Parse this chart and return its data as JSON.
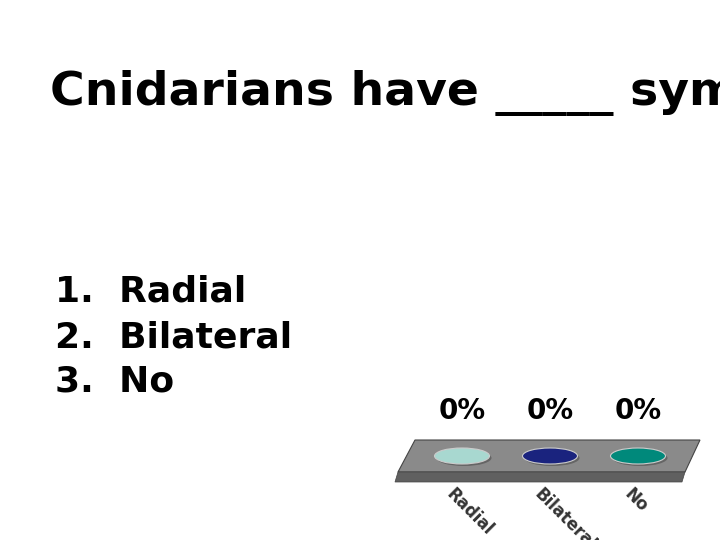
{
  "title": "Cnidarians have _____ symmetry",
  "items": [
    "1.  Radial",
    "2.  Bilateral",
    "3.  No"
  ],
  "bar_labels": [
    "Radial",
    "Bilateral",
    "No"
  ],
  "bar_percentages": [
    "0%",
    "0%",
    "0%"
  ],
  "ellipse_colors": [
    "#a8d8d0",
    "#1a237e",
    "#00897b"
  ],
  "background_color": "#ffffff",
  "title_fontsize": 34,
  "items_fontsize": 26,
  "platform_color": "#8a8a8a",
  "platform_dark": "#606060",
  "pct_fontsize": 20,
  "label_fontsize": 12
}
